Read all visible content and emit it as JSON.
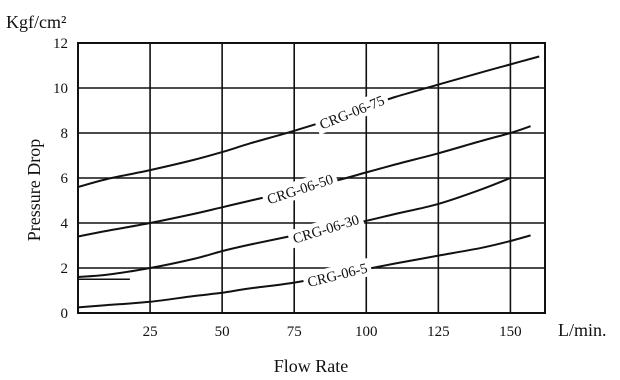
{
  "chart_data": {
    "type": "line",
    "xlabel": "Flow Rate",
    "ylabel": "Pressure Drop",
    "x_unit": "L/min.",
    "y_unit": "Kgf/cm²",
    "xlim": [
      0,
      162
    ],
    "ylim": [
      0,
      12
    ],
    "x_ticks": [
      "25",
      "50",
      "75",
      "100",
      "125",
      "150"
    ],
    "y_ticks": [
      "0",
      "2",
      "4",
      "6",
      "8",
      "10",
      "12"
    ],
    "grid": true,
    "series": [
      {
        "name": "CRG-06-75",
        "x": [
          0,
          10,
          25,
          40,
          50,
          60,
          75,
          90,
          100,
          110,
          125,
          140,
          150,
          160
        ],
        "y": [
          5.6,
          5.95,
          6.35,
          6.8,
          7.15,
          7.55,
          8.1,
          8.7,
          9.15,
          9.6,
          10.15,
          10.7,
          11.05,
          11.4
        ]
      },
      {
        "name": "CRG-06-50",
        "x": [
          0,
          10,
          25,
          40,
          50,
          60,
          75,
          90,
          100,
          110,
          125,
          140,
          150,
          157
        ],
        "y": [
          3.4,
          3.65,
          4.0,
          4.4,
          4.7,
          5.0,
          5.45,
          5.9,
          6.25,
          6.6,
          7.1,
          7.65,
          8.0,
          8.3
        ]
      },
      {
        "name": "CRG-06-30",
        "x": [
          0,
          10,
          25,
          40,
          50,
          60,
          75,
          90,
          100,
          110,
          125,
          140,
          150
        ],
        "y": [
          1.6,
          1.7,
          2.0,
          2.4,
          2.75,
          3.05,
          3.45,
          3.85,
          4.1,
          4.4,
          4.85,
          5.5,
          6.0
        ]
      },
      {
        "name": "CRG-06-5",
        "x": [
          0,
          10,
          25,
          40,
          50,
          60,
          75,
          90,
          100,
          110,
          125,
          140,
          150,
          157
        ],
        "y": [
          0.25,
          0.35,
          0.5,
          0.75,
          0.9,
          1.1,
          1.35,
          1.7,
          1.95,
          2.2,
          2.55,
          2.9,
          3.2,
          3.45
        ]
      }
    ]
  }
}
